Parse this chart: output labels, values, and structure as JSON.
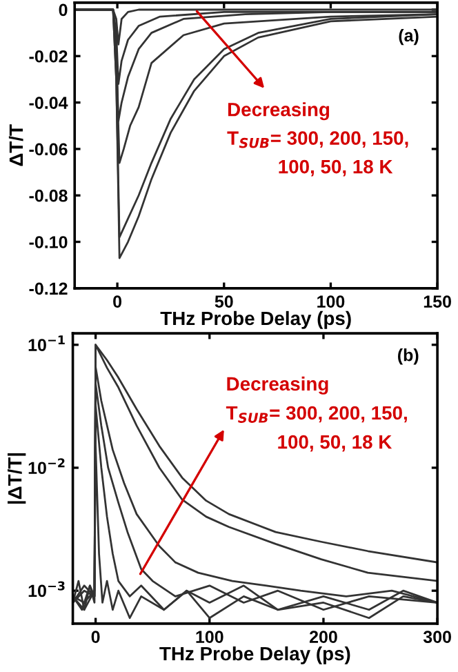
{
  "chart_data": [
    {
      "type": "line",
      "xlabel": "THz Probe Delay (ps)",
      "ylabel": "ΔT/T",
      "xlim": [
        -20,
        150
      ],
      "ylim": [
        -0.12,
        0.003
      ],
      "xticks": [
        0,
        50,
        100,
        150
      ],
      "yticks": [
        0,
        -0.02,
        -0.04,
        -0.06,
        -0.08,
        {
          "value": -0.1,
          "label": "-0.10"
        },
        -0.12
      ],
      "grid": false,
      "legend": false,
      "annotations": [
        "(a)",
        "Decreasing",
        "T$_{SUB}$= 300, 200, 150,",
        "100, 50, 18 K"
      ],
      "series": [
        {
          "color": "#333333",
          "x": [
            -20,
            -10,
            -2,
            -0.5,
            0.5,
            2,
            5,
            10,
            50,
            100,
            150
          ],
          "values": [
            0,
            0,
            0,
            -0.004,
            -0.015,
            -0.004,
            -0.001,
            0,
            0,
            0,
            0
          ]
        },
        {
          "color": "#333333",
          "x": [
            -20,
            -10,
            -2,
            -0.5,
            0.5,
            2,
            5,
            10,
            20,
            50,
            100,
            150
          ],
          "values": [
            0,
            0,
            0,
            -0.01,
            -0.032,
            -0.022,
            -0.013,
            -0.007,
            -0.003,
            -0.001,
            -0.001,
            -0.001
          ]
        },
        {
          "color": "#333333",
          "x": [
            -20,
            -10,
            -2,
            -0.5,
            0.5,
            2,
            5,
            10,
            16,
            31,
            60,
            100,
            150
          ],
          "values": [
            0,
            0,
            0,
            -0.015,
            -0.048,
            -0.04,
            -0.029,
            -0.017,
            -0.01,
            -0.004,
            -0.002,
            -0.001,
            -0.001
          ]
        },
        {
          "color": "#333333",
          "x": [
            -20,
            -10,
            -2,
            -0.5,
            1,
            3,
            6,
            10,
            16,
            31,
            50,
            100,
            150
          ],
          "values": [
            0,
            0,
            0,
            -0.02,
            -0.066,
            -0.06,
            -0.05,
            -0.042,
            -0.023,
            -0.011,
            -0.006,
            -0.003,
            -0.002
          ]
        },
        {
          "color": "#333333",
          "x": [
            -20,
            -10,
            -2,
            -0.5,
            1,
            5,
            10,
            16,
            25,
            36,
            50,
            66,
            100,
            150
          ],
          "values": [
            0,
            0,
            0,
            -0.03,
            -0.098,
            -0.09,
            -0.08,
            -0.066,
            -0.047,
            -0.03,
            -0.017,
            -0.01,
            -0.004,
            -0.002
          ]
        },
        {
          "color": "#333333",
          "x": [
            -20,
            -10,
            -2,
            -0.5,
            1,
            5,
            10,
            16,
            25,
            36,
            50,
            66,
            100,
            150
          ],
          "values": [
            0,
            0,
            0,
            -0.03,
            -0.107,
            -0.1,
            -0.089,
            -0.073,
            -0.053,
            -0.035,
            -0.02,
            -0.012,
            -0.005,
            -0.003
          ]
        }
      ]
    },
    {
      "type": "line",
      "log": "y",
      "xlabel": "THz Probe Delay (ps)",
      "ylabel": "|ΔT/T|",
      "xlim": [
        -20,
        300
      ],
      "ylim": [
        0.00054,
        0.124
      ],
      "xticks": [
        0,
        100,
        200,
        300
      ],
      "yticks": [
        {
          "value": 0.1,
          "label": "10$^{−1}$"
        },
        {
          "value": 0.01,
          "label": "10$^{−2}$"
        },
        {
          "value": 0.001,
          "label": "10$^{−3}$"
        }
      ],
      "grid": false,
      "legend": false,
      "annotations": [
        "(b)",
        "Decreasing",
        "T$_{SUB}$= 300, 200, 150,",
        "100, 50, 18 K"
      ],
      "series": [
        {
          "color": "#333333",
          "x": [
            -20,
            -15,
            -10,
            -5,
            -1,
            0,
            3,
            6,
            10,
            15,
            20,
            30,
            40,
            60,
            80,
            100,
            130,
            160,
            200,
            240,
            270,
            300
          ],
          "values": [
            0.0008,
            0.0012,
            0.0007,
            0.0011,
            0.0009,
            0.015,
            0.002,
            0.0008,
            0.0012,
            0.0007,
            0.001,
            0.0006,
            0.0009,
            0.0007,
            0.001,
            0.0006,
            0.0009,
            0.0007,
            0.0008,
            0.0006,
            0.0009,
            0.0008
          ]
        },
        {
          "color": "#333333",
          "x": [
            -20,
            -12,
            -5,
            -1,
            0,
            5,
            10,
            15,
            20,
            30,
            40,
            60,
            80,
            100,
            130,
            160,
            200,
            240,
            270,
            300
          ],
          "values": [
            0.0009,
            0.0007,
            0.0011,
            0.0008,
            0.032,
            0.01,
            0.004,
            0.002,
            0.0012,
            0.0009,
            0.0011,
            0.0007,
            0.001,
            0.0008,
            0.0011,
            0.0007,
            0.0009,
            0.0007,
            0.001,
            0.0008
          ]
        },
        {
          "color": "#333333",
          "x": [
            -20,
            -10,
            -1,
            0,
            5,
            11,
            20,
            28,
            40,
            50,
            70,
            100,
            130,
            160,
            200,
            240,
            300
          ],
          "values": [
            0.0008,
            0.0011,
            0.0009,
            0.048,
            0.022,
            0.01,
            0.0052,
            0.003,
            0.0015,
            0.0012,
            0.0009,
            0.0011,
            0.0008,
            0.001,
            0.0007,
            0.0009,
            0.0008
          ]
        },
        {
          "color": "#333333",
          "x": [
            -20,
            -10,
            -1,
            0,
            5,
            15,
            25,
            36,
            56,
            70,
            90,
            120,
            150,
            180,
            220,
            260,
            300
          ],
          "values": [
            0.0009,
            0.0007,
            0.001,
            0.066,
            0.035,
            0.014,
            0.0075,
            0.0042,
            0.0023,
            0.0017,
            0.0014,
            0.0012,
            0.0011,
            0.001,
            0.0009,
            0.001,
            0.0008
          ]
        },
        {
          "color": "#333333",
          "x": [
            -20,
            -10,
            -1,
            0,
            10,
            20,
            36,
            56,
            76,
            97,
            117,
            158,
            198,
            239,
            300
          ],
          "values": [
            0.0008,
            0.001,
            0.0009,
            0.1,
            0.065,
            0.045,
            0.022,
            0.01,
            0.0055,
            0.004,
            0.0033,
            0.0024,
            0.0018,
            0.0014,
            0.0012
          ]
        },
        {
          "color": "#333333",
          "x": [
            -20,
            -10,
            -1,
            0,
            10,
            19.5,
            36,
            56,
            76,
            97,
            117,
            158,
            198,
            239,
            300
          ],
          "values": [
            0.0009,
            0.0008,
            0.001,
            0.1,
            0.075,
            0.055,
            0.03,
            0.015,
            0.0083,
            0.0054,
            0.0042,
            0.003,
            0.0025,
            0.0021,
            0.0017
          ]
        }
      ]
    }
  ]
}
